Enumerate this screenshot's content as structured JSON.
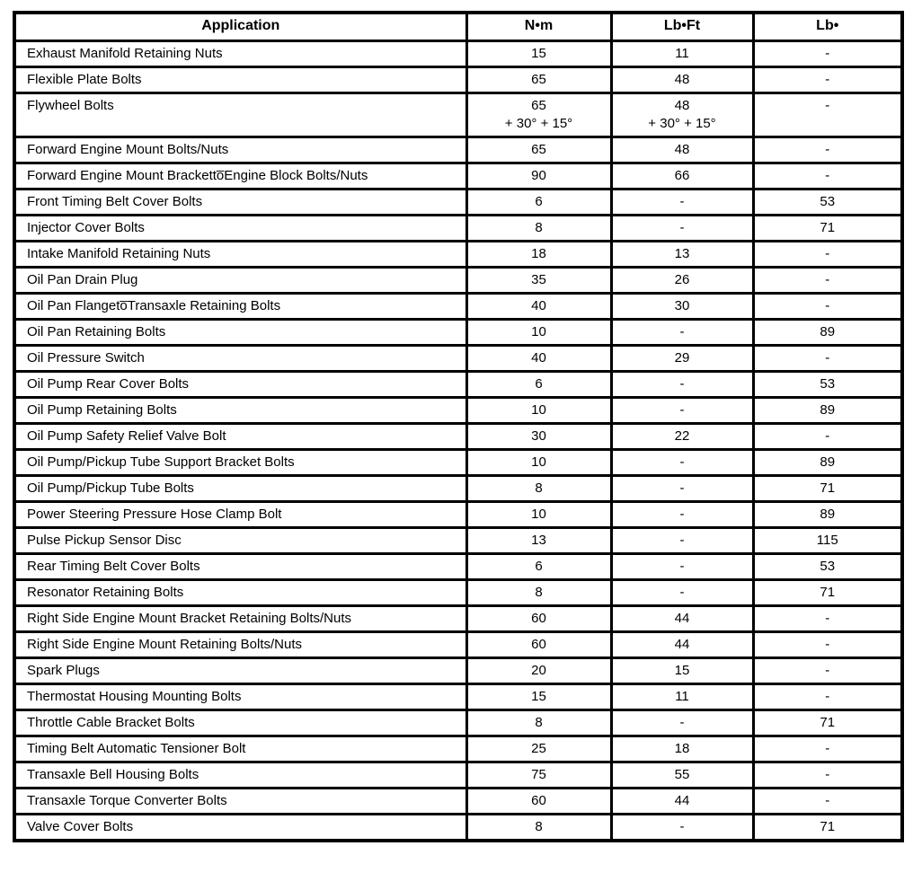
{
  "page": {
    "background_color": "#ffffff",
    "border_color": "#000000",
    "text_color": "#000000"
  },
  "table": {
    "columns": [
      {
        "key": "application",
        "label": "Application"
      },
      {
        "key": "nm",
        "label": "N•m"
      },
      {
        "key": "lbft",
        "label": "Lb•Ft"
      },
      {
        "key": "lbin",
        "label": "Lb•"
      }
    ],
    "rows": [
      {
        "application": "Exhaust Manifold Retaining Nuts",
        "nm": [
          "15"
        ],
        "lbft": [
          "11"
        ],
        "lbin": [
          "-"
        ]
      },
      {
        "application": "Flexible Plate Bolts",
        "nm": [
          "65"
        ],
        "lbft": [
          "48"
        ],
        "lbin": [
          "-"
        ]
      },
      {
        "application": "Flywheel Bolts",
        "nm": [
          "65",
          "+ 30° + 15°"
        ],
        "lbft": [
          "48",
          "+ 30° + 15°"
        ],
        "lbin": [
          "-"
        ]
      },
      {
        "application": "Forward Engine Mount Bolts/Nuts",
        "nm": [
          "65"
        ],
        "lbft": [
          "48"
        ],
        "lbin": [
          "-"
        ]
      },
      {
        "application": "Forward Engine Mount Bracketto̅Engine Block Bolts/Nuts",
        "nm": [
          "90"
        ],
        "lbft": [
          "66"
        ],
        "lbin": [
          "-"
        ]
      },
      {
        "application": "Front Timing Belt Cover Bolts",
        "nm": [
          "6"
        ],
        "lbft": [
          "-"
        ],
        "lbin": [
          "53"
        ]
      },
      {
        "application": "Injector Cover Bolts",
        "nm": [
          "8"
        ],
        "lbft": [
          "-"
        ],
        "lbin": [
          "71"
        ]
      },
      {
        "application": "Intake Manifold Retaining Nuts",
        "nm": [
          "18"
        ],
        "lbft": [
          "13"
        ],
        "lbin": [
          "-"
        ]
      },
      {
        "application": "Oil Pan Drain Plug",
        "nm": [
          "35"
        ],
        "lbft": [
          "26"
        ],
        "lbin": [
          "-"
        ]
      },
      {
        "application": "Oil Pan Flangeto̅Transaxle Retaining Bolts",
        "nm": [
          "40"
        ],
        "lbft": [
          "30"
        ],
        "lbin": [
          "-"
        ]
      },
      {
        "application": "Oil Pan Retaining Bolts",
        "nm": [
          "10"
        ],
        "lbft": [
          "-"
        ],
        "lbin": [
          "89"
        ]
      },
      {
        "application": "Oil Pressure Switch",
        "nm": [
          "40"
        ],
        "lbft": [
          "29"
        ],
        "lbin": [
          "-"
        ]
      },
      {
        "application": "Oil Pump Rear Cover Bolts",
        "nm": [
          "6"
        ],
        "lbft": [
          "-"
        ],
        "lbin": [
          "53"
        ]
      },
      {
        "application": "Oil Pump Retaining Bolts",
        "nm": [
          "10"
        ],
        "lbft": [
          "-"
        ],
        "lbin": [
          "89"
        ]
      },
      {
        "application": "Oil Pump Safety Relief Valve Bolt",
        "nm": [
          "30"
        ],
        "lbft": [
          "22"
        ],
        "lbin": [
          "-"
        ]
      },
      {
        "application": "Oil Pump/Pickup Tube Support Bracket Bolts",
        "nm": [
          "10"
        ],
        "lbft": [
          "-"
        ],
        "lbin": [
          "89"
        ]
      },
      {
        "application": "Oil Pump/Pickup Tube Bolts",
        "nm": [
          "8"
        ],
        "lbft": [
          "-"
        ],
        "lbin": [
          "71"
        ]
      },
      {
        "application": "Power Steering Pressure Hose Clamp Bolt",
        "nm": [
          "10"
        ],
        "lbft": [
          "-"
        ],
        "lbin": [
          "89"
        ]
      },
      {
        "application": "Pulse Pickup Sensor Disc",
        "nm": [
          "13"
        ],
        "lbft": [
          "-"
        ],
        "lbin": [
          "115"
        ]
      },
      {
        "application": "Rear Timing Belt Cover Bolts",
        "nm": [
          "6"
        ],
        "lbft": [
          "-"
        ],
        "lbin": [
          "53"
        ]
      },
      {
        "application": "Resonator Retaining Bolts",
        "nm": [
          "8"
        ],
        "lbft": [
          "-"
        ],
        "lbin": [
          "71"
        ]
      },
      {
        "application": "Right Side Engine Mount Bracket Retaining Bolts/Nuts",
        "nm": [
          "60"
        ],
        "lbft": [
          "44"
        ],
        "lbin": [
          "-"
        ]
      },
      {
        "application": "Right Side Engine Mount Retaining Bolts/Nuts",
        "nm": [
          "60"
        ],
        "lbft": [
          "44"
        ],
        "lbin": [
          "-"
        ]
      },
      {
        "application": "Spark Plugs",
        "nm": [
          "20"
        ],
        "lbft": [
          "15"
        ],
        "lbin": [
          "-"
        ]
      },
      {
        "application": "Thermostat Housing Mounting Bolts",
        "nm": [
          "15"
        ],
        "lbft": [
          "11"
        ],
        "lbin": [
          "-"
        ]
      },
      {
        "application": "Throttle Cable Bracket Bolts",
        "nm": [
          "8"
        ],
        "lbft": [
          "-"
        ],
        "lbin": [
          "71"
        ]
      },
      {
        "application": "Timing Belt Automatic Tensioner Bolt",
        "nm": [
          "25"
        ],
        "lbft": [
          "18"
        ],
        "lbin": [
          "-"
        ]
      },
      {
        "application": "Transaxle Bell Housing Bolts",
        "nm": [
          "75"
        ],
        "lbft": [
          "55"
        ],
        "lbin": [
          "-"
        ]
      },
      {
        "application": "Transaxle Torque Converter Bolts",
        "nm": [
          "60"
        ],
        "lbft": [
          "44"
        ],
        "lbin": [
          "-"
        ]
      },
      {
        "application": "Valve Cover Bolts",
        "nm": [
          "8"
        ],
        "lbft": [
          "-"
        ],
        "lbin": [
          "71"
        ]
      }
    ]
  }
}
